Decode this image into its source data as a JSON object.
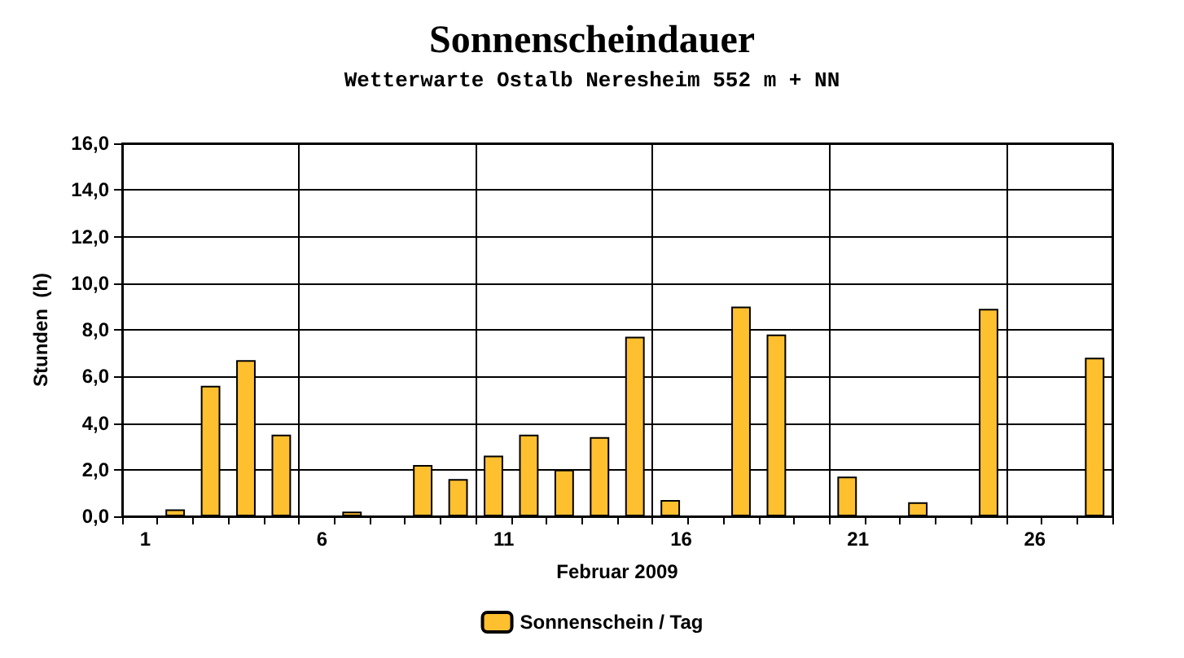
{
  "chart_data": {
    "type": "bar",
    "title": "Sonnenscheindauer",
    "subtitle": "Wetterwarte Ostalb Neresheim 552 m + NN",
    "xlabel": "Februar 2009",
    "ylabel": "Stunden  (h)",
    "categories": [
      "1",
      null,
      null,
      null,
      null,
      "6",
      null,
      null,
      null,
      null,
      "11",
      null,
      null,
      null,
      null,
      "16",
      null,
      null,
      null,
      null,
      "21",
      null,
      null,
      null,
      null,
      "26",
      null,
      null
    ],
    "series": [
      {
        "name": "Sonnenschein / Tag",
        "color": "#ffc030",
        "values": [
          0,
          0.3,
          5.6,
          6.7,
          3.5,
          0,
          0.2,
          0,
          2.2,
          1.6,
          2.6,
          3.5,
          2.0,
          3.4,
          7.7,
          0.7,
          0,
          9.0,
          7.8,
          0,
          1.7,
          0,
          0.6,
          0,
          8.9,
          0,
          0,
          6.8
        ]
      }
    ],
    "ylim": [
      0,
      16
    ],
    "yticks": [
      {
        "value": 0,
        "label": "0,0"
      },
      {
        "value": 2,
        "label": "2,0"
      },
      {
        "value": 4,
        "label": "4,0"
      },
      {
        "value": 6,
        "label": "6,0"
      },
      {
        "value": 8,
        "label": "8,0"
      },
      {
        "value": 10,
        "label": "10,0"
      },
      {
        "value": 12,
        "label": "12,0"
      },
      {
        "value": 14,
        "label": "14,0"
      },
      {
        "value": 16,
        "label": "16,0"
      }
    ],
    "grid": true,
    "legend": "bottom"
  }
}
